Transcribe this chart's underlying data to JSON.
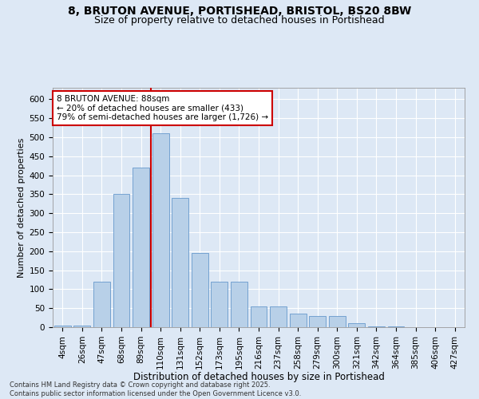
{
  "title1": "8, BRUTON AVENUE, PORTISHEAD, BRISTOL, BS20 8BW",
  "title2": "Size of property relative to detached houses in Portishead",
  "xlabel": "Distribution of detached houses by size in Portishead",
  "ylabel": "Number of detached properties",
  "categories": [
    "4sqm",
    "26sqm",
    "47sqm",
    "68sqm",
    "89sqm",
    "110sqm",
    "131sqm",
    "152sqm",
    "173sqm",
    "195sqm",
    "216sqm",
    "237sqm",
    "258sqm",
    "279sqm",
    "300sqm",
    "321sqm",
    "342sqm",
    "364sqm",
    "385sqm",
    "406sqm",
    "427sqm"
  ],
  "values": [
    5,
    5,
    120,
    350,
    420,
    510,
    340,
    195,
    120,
    120,
    55,
    55,
    35,
    30,
    30,
    10,
    3,
    2,
    1,
    1,
    1
  ],
  "bar_color": "#b8d0e8",
  "bar_edge_color": "#6699cc",
  "vline_x": 4.5,
  "vline_color": "#cc0000",
  "annotation_text": "8 BRUTON AVENUE: 88sqm\n← 20% of detached houses are smaller (433)\n79% of semi-detached houses are larger (1,726) →",
  "annotation_box_facecolor": "#ffffff",
  "annotation_box_edgecolor": "#cc0000",
  "ylim": [
    0,
    630
  ],
  "yticks": [
    0,
    50,
    100,
    150,
    200,
    250,
    300,
    350,
    400,
    450,
    500,
    550,
    600
  ],
  "footnote": "Contains HM Land Registry data © Crown copyright and database right 2025.\nContains public sector information licensed under the Open Government Licence v3.0.",
  "bg_color": "#dde8f5",
  "grid_color": "#ffffff",
  "title1_fontsize": 10,
  "title2_fontsize": 9,
  "xlabel_fontsize": 8.5,
  "ylabel_fontsize": 8,
  "tick_fontsize": 7.5,
  "annot_fontsize": 7.5,
  "footnote_fontsize": 6
}
